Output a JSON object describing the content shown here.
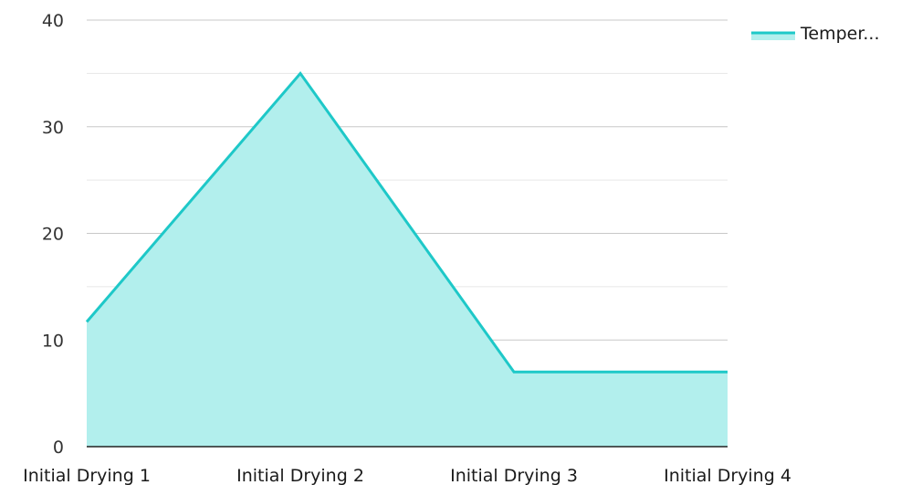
{
  "chart_data": {
    "type": "area",
    "categories": [
      "Initial Drying 1",
      "Initial Drying 2",
      "Initial Drying 3",
      "Initial Drying 4"
    ],
    "series": [
      {
        "name": "Temper...",
        "values": [
          11.7,
          35,
          7,
          7
        ]
      }
    ],
    "ylim": [
      0,
      40
    ],
    "yticks": [
      0,
      10,
      20,
      30,
      40
    ],
    "minor_gridlines": true,
    "grid": true,
    "legend_position": "top-right",
    "colors": {
      "line": "#1ec8c8",
      "fill": "#b2efed",
      "grid_major": "#c8c8c8",
      "grid_minor": "#e6e6e6",
      "axis": "#222222"
    }
  }
}
